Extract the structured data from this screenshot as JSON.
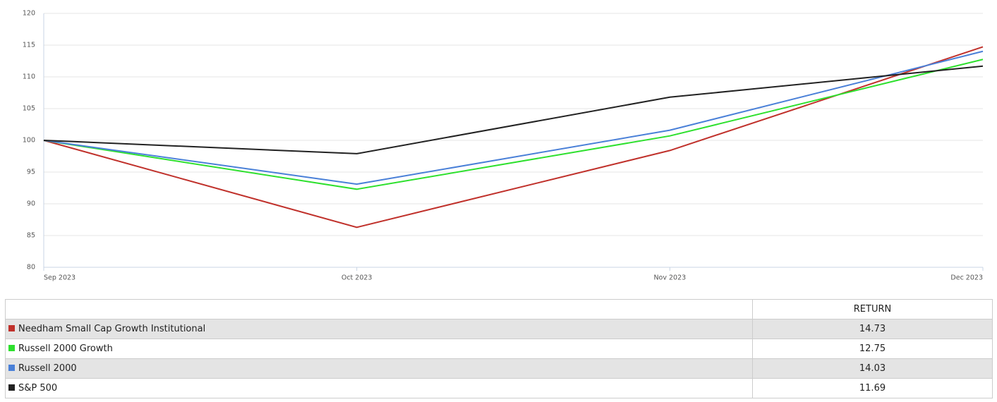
{
  "chart_data": {
    "type": "line",
    "categories": [
      "Sep 2023",
      "Oct 2023",
      "Nov 2023",
      "Dec 2023"
    ],
    "series": [
      {
        "name": "Needham Small Cap Growth Institutional",
        "color": "#c0312b",
        "values": [
          100,
          86.3,
          98.4,
          114.73
        ]
      },
      {
        "name": "Russell 2000 Growth",
        "color": "#2ee02e",
        "values": [
          100,
          92.3,
          100.7,
          112.75
        ]
      },
      {
        "name": "Russell 2000",
        "color": "#4a80d8",
        "values": [
          100,
          93.1,
          101.6,
          114.03
        ]
      },
      {
        "name": "S&P 500",
        "color": "#222222",
        "values": [
          100,
          97.9,
          106.8,
          111.69
        ]
      }
    ],
    "ylim": [
      80,
      120
    ],
    "yticks": [
      80,
      85,
      90,
      95,
      100,
      105,
      110,
      115,
      120
    ],
    "grid": true
  },
  "table": {
    "header": "RETURN",
    "returns": [
      14.73,
      12.75,
      14.03,
      11.69
    ]
  }
}
